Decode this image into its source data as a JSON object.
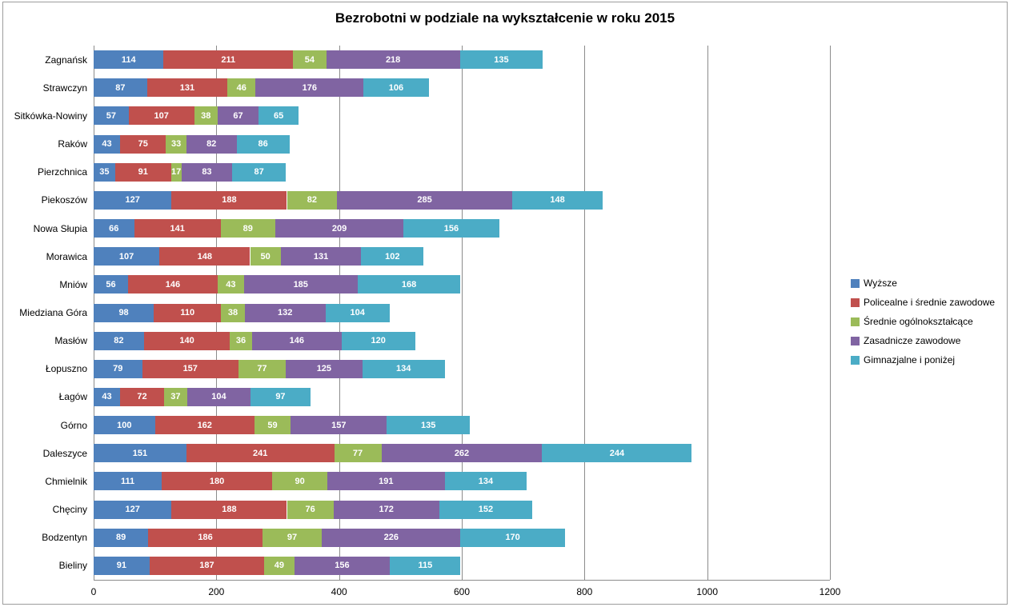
{
  "chart_data": {
    "type": "bar",
    "orientation": "horizontal",
    "stacked": true,
    "title": "Bezrobotni w podziale na wykształcenie w roku 2015",
    "categories": [
      "Zagnańsk",
      "Strawczyn",
      "Sitkówka-Nowiny",
      "Raków",
      "Pierzchnica",
      "Piekoszów",
      "Nowa Słupia",
      "Morawica",
      "Mniów",
      "Miedziana Góra",
      "Masłów",
      "Łopuszno",
      "Łagów",
      "Górno",
      "Daleszyce",
      "Chmielnik",
      "Chęciny",
      "Bodzentyn",
      "Bieliny"
    ],
    "series": [
      {
        "name": "Wyższe",
        "color": "#4F81BD",
        "values": [
          114,
          87,
          57,
          43,
          35,
          127,
          66,
          107,
          56,
          98,
          82,
          79,
          43,
          100,
          151,
          111,
          127,
          89,
          91
        ]
      },
      {
        "name": "Policealne i średnie zawodowe",
        "color": "#C0504D",
        "values": [
          211,
          131,
          107,
          75,
          91,
          188,
          141,
          148,
          146,
          110,
          140,
          157,
          72,
          162,
          241,
          180,
          188,
          186,
          187
        ]
      },
      {
        "name": "Średnie ogólnokształcące",
        "color": "#9BBB59",
        "values": [
          54,
          46,
          38,
          33,
          17,
          82,
          89,
          50,
          43,
          38,
          36,
          77,
          37,
          59,
          77,
          90,
          76,
          97,
          49
        ]
      },
      {
        "name": "Zasadnicze zawodowe",
        "color": "#8064A2",
        "values": [
          218,
          176,
          67,
          82,
          83,
          285,
          209,
          131,
          185,
          132,
          146,
          125,
          104,
          157,
          262,
          191,
          172,
          226,
          156
        ]
      },
      {
        "name": "Gimnazjalne i poniżej",
        "color": "#4BACC6",
        "values": [
          135,
          106,
          65,
          86,
          87,
          148,
          156,
          102,
          168,
          104,
          120,
          134,
          97,
          135,
          244,
          134,
          152,
          170,
          115
        ]
      }
    ],
    "xlabel": "",
    "ylabel": "",
    "x_axis": {
      "min": 0,
      "max": 1200,
      "tick_interval": 200,
      "ticks": [
        "0",
        "200",
        "400",
        "600",
        "800",
        "1000",
        "1200"
      ]
    },
    "legend_position": "right",
    "gridlines": "vertical",
    "data_labels": true
  }
}
